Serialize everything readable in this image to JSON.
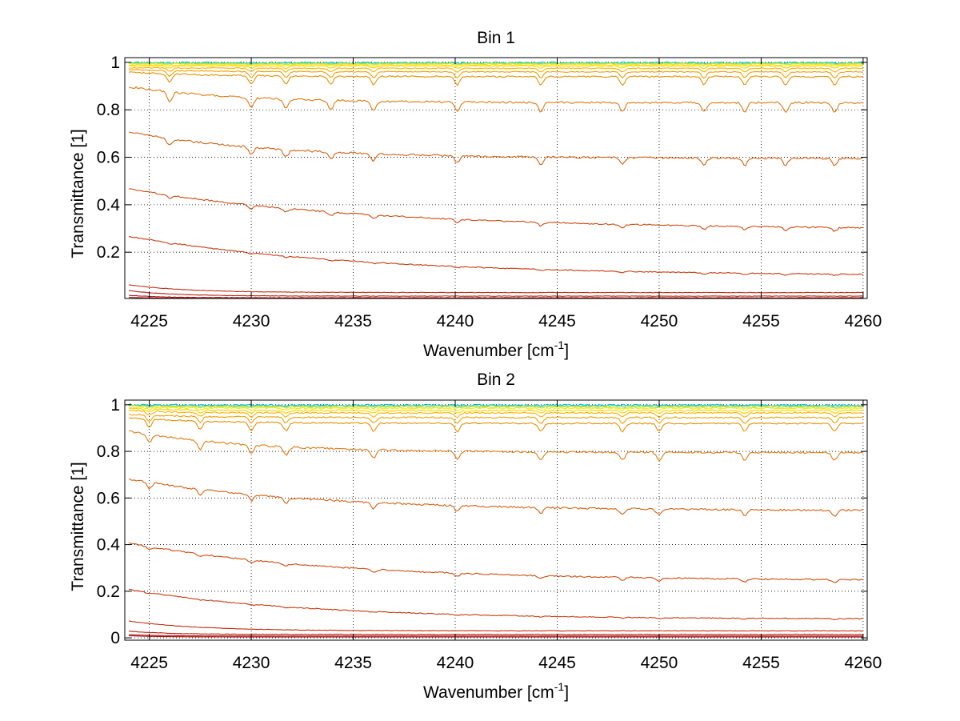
{
  "chart_data": [
    {
      "type": "line",
      "title": "Bin 1",
      "xlabel": "Wavenumber [cm",
      "xlabel_sup": "-1",
      "xlabel_end": "]",
      "ylabel": "Transmittance [1]",
      "xlim": [
        4223.8,
        4260.2
      ],
      "ylim": [
        0.005,
        1.02
      ],
      "xticks": [
        "4225",
        "4230",
        "4235",
        "4240",
        "4245",
        "4250",
        "4255",
        "4260"
      ],
      "yticks": [
        "0.2",
        "0.4",
        "0.6",
        "0.8",
        "1"
      ],
      "grid": true,
      "series": [
        {
          "color": "#00bfc4",
          "start": 1.0,
          "level": 0.998,
          "decay": 0.02,
          "dip": 0.0,
          "noise": 0.004
        },
        {
          "color": "#66d98c",
          "start": 0.998,
          "level": 0.996,
          "decay": 0.02,
          "dip": 0.002,
          "noise": 0.003
        },
        {
          "color": "#c8e632",
          "start": 0.995,
          "level": 0.994,
          "decay": 0.02,
          "dip": 0.004,
          "noise": 0.002
        },
        {
          "color": "#ffe800",
          "start": 0.99,
          "level": 0.99,
          "decay": 0.02,
          "dip": 0.006,
          "noise": 0.002
        },
        {
          "color": "#ffd000",
          "start": 0.985,
          "level": 0.985,
          "decay": 0.02,
          "dip": 0.01,
          "noise": 0.002
        },
        {
          "color": "#ffb000",
          "start": 0.978,
          "level": 0.975,
          "decay": 0.03,
          "dip": 0.015,
          "noise": 0.002
        },
        {
          "color": "#f0a000",
          "start": 0.97,
          "level": 0.96,
          "decay": 0.04,
          "dip": 0.025,
          "noise": 0.002
        },
        {
          "color": "#e89000",
          "start": 0.96,
          "level": 0.94,
          "decay": 0.05,
          "dip": 0.035,
          "noise": 0.003
        },
        {
          "color": "#e07a10",
          "start": 0.9,
          "level": 0.83,
          "decay": 0.07,
          "dip": 0.04,
          "noise": 0.004
        },
        {
          "color": "#d86010",
          "start": 0.71,
          "level": 0.595,
          "decay": 0.1,
          "dip": 0.03,
          "noise": 0.004
        },
        {
          "color": "#d04a10",
          "start": 0.47,
          "level": 0.295,
          "decay": 0.18,
          "dip": 0.015,
          "noise": 0.003
        },
        {
          "color": "#c83a10",
          "start": 0.27,
          "level": 0.1,
          "decay": 0.17,
          "dip": 0.005,
          "noise": 0.002
        },
        {
          "color": "#c02e10",
          "start": 0.065,
          "level": 0.03,
          "decay": 0.03,
          "dip": 0.0,
          "noise": 0.001
        },
        {
          "color": "#b82010",
          "start": 0.04,
          "level": 0.015,
          "decay": 0.02,
          "dip": 0.0,
          "noise": 0.001
        },
        {
          "color": "#b01010",
          "start": 0.02,
          "level": 0.008,
          "decay": 0.01,
          "dip": 0.0,
          "noise": 0.001
        },
        {
          "color": "#a00808",
          "start": 0.01,
          "level": 0.006,
          "decay": 0.005,
          "dip": 0.0,
          "noise": 0.0
        }
      ],
      "absorption_lines": [
        4226.0,
        4230.0,
        4231.7,
        4233.9,
        4236.0,
        4240.1,
        4244.2,
        4248.2,
        4252.2,
        4254.2,
        4256.2,
        4258.6
      ]
    },
    {
      "type": "line",
      "title": "Bin 2",
      "xlabel": "Wavenumber [cm",
      "xlabel_sup": "-1",
      "xlabel_end": "]",
      "ylabel": "Transmittance [1]",
      "xlim": [
        4223.8,
        4260.2
      ],
      "ylim": [
        -0.01,
        1.02
      ],
      "xticks": [
        "4225",
        "4230",
        "4235",
        "4240",
        "4245",
        "4250",
        "4255",
        "4260"
      ],
      "yticks": [
        "0",
        "0.2",
        "0.4",
        "0.6",
        "0.8",
        "1"
      ],
      "grid": true,
      "series": [
        {
          "color": "#00bfc4",
          "start": 1.0,
          "level": 0.998,
          "decay": 0.02,
          "dip": 0.0,
          "noise": 0.004
        },
        {
          "color": "#66d98c",
          "start": 0.998,
          "level": 0.995,
          "decay": 0.02,
          "dip": 0.003,
          "noise": 0.003
        },
        {
          "color": "#c8e632",
          "start": 0.995,
          "level": 0.99,
          "decay": 0.02,
          "dip": 0.005,
          "noise": 0.003
        },
        {
          "color": "#ffe800",
          "start": 0.99,
          "level": 0.985,
          "decay": 0.02,
          "dip": 0.008,
          "noise": 0.003
        },
        {
          "color": "#ffd000",
          "start": 0.985,
          "level": 0.975,
          "decay": 0.03,
          "dip": 0.012,
          "noise": 0.003
        },
        {
          "color": "#ffb000",
          "start": 0.975,
          "level": 0.965,
          "decay": 0.03,
          "dip": 0.018,
          "noise": 0.003
        },
        {
          "color": "#f0a000",
          "start": 0.96,
          "level": 0.945,
          "decay": 0.04,
          "dip": 0.025,
          "noise": 0.003
        },
        {
          "color": "#e89000",
          "start": 0.945,
          "level": 0.92,
          "decay": 0.05,
          "dip": 0.035,
          "noise": 0.003
        },
        {
          "color": "#e07a10",
          "start": 0.89,
          "level": 0.795,
          "decay": 0.08,
          "dip": 0.035,
          "noise": 0.004
        },
        {
          "color": "#d86010",
          "start": 0.685,
          "level": 0.545,
          "decay": 0.13,
          "dip": 0.025,
          "noise": 0.004
        },
        {
          "color": "#d04a10",
          "start": 0.41,
          "level": 0.245,
          "decay": 0.15,
          "dip": 0.012,
          "noise": 0.003
        },
        {
          "color": "#c83a10",
          "start": 0.21,
          "level": 0.08,
          "decay": 0.13,
          "dip": 0.004,
          "noise": 0.002
        },
        {
          "color": "#c02e10",
          "start": 0.075,
          "level": 0.03,
          "decay": 0.04,
          "dip": 0.0,
          "noise": 0.001
        },
        {
          "color": "#b82010",
          "start": 0.03,
          "level": 0.015,
          "decay": 0.015,
          "dip": 0.0,
          "noise": 0.001
        },
        {
          "color": "#b01010",
          "start": 0.015,
          "level": 0.008,
          "decay": 0.007,
          "dip": 0.0,
          "noise": 0.0
        },
        {
          "color": "#a00808",
          "start": 0.01,
          "level": 0.004,
          "decay": 0.005,
          "dip": 0.0,
          "noise": 0.0
        }
      ],
      "absorption_lines": [
        4225.0,
        4227.5,
        4230.0,
        4231.7,
        4236.0,
        4240.1,
        4244.2,
        4248.2,
        4250.0,
        4254.2,
        4258.6
      ]
    }
  ]
}
